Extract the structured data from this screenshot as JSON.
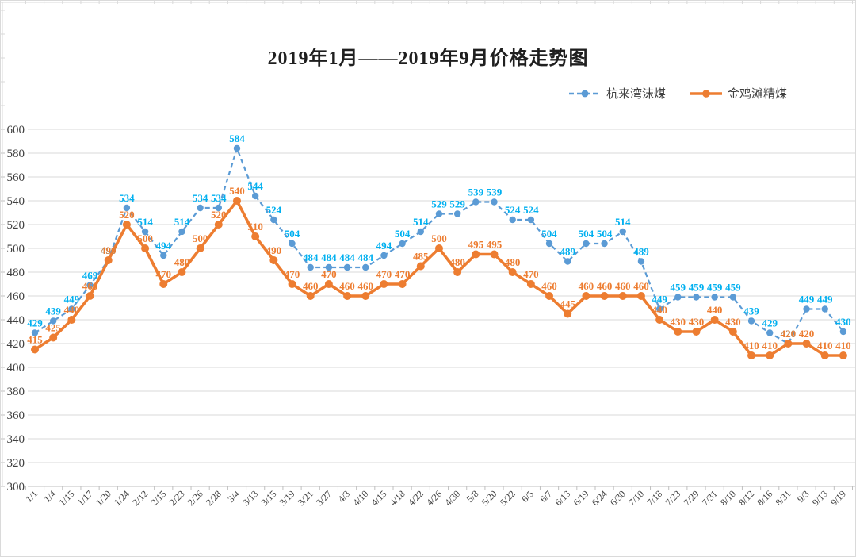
{
  "title": "2019年1月——2019年9月价格走势图",
  "legend": [
    {
      "label": "杭来湾沫煤",
      "color": "#5B9BD5",
      "style": "dashed"
    },
    {
      "label": "金鸡滩精煤",
      "color": "#ED7D31",
      "style": "solid"
    }
  ],
  "colors": {
    "blue_line": "#5B9BD5",
    "blue_label": "#00B0F0",
    "orange_line": "#ED7D31",
    "orange_label": "#ED7D31",
    "gridline": "#D9D9D9",
    "axis": "#BFBFBF",
    "tick_text": "#404040"
  },
  "chart_data": {
    "type": "line",
    "title": "2019年1月——2019年9月价格走势图",
    "categories": [
      "1/1",
      "1/4",
      "1/15",
      "1/17",
      "1/20",
      "1/24",
      "2/12",
      "2/15",
      "2/23",
      "2/26",
      "2/28",
      "3/4",
      "3/13",
      "3/15",
      "3/19",
      "3/21",
      "3/27",
      "4/3",
      "4/10",
      "4/15",
      "4/18",
      "4/22",
      "4/26",
      "4/30",
      "5/8",
      "5/20",
      "5/22",
      "6/5",
      "6/7",
      "6/13",
      "6/19",
      "6/24",
      "6/30",
      "7/10",
      "7/18",
      "7/23",
      "7/29",
      "7/31",
      "8/10",
      "8/12",
      "8/16",
      "8/31",
      "9/3",
      "9/13",
      "9/19"
    ],
    "series": [
      {
        "name": "杭来湾沫煤",
        "color": "#5B9BD5",
        "label_color": "#00B0F0",
        "line_style": "dashed",
        "marker": "circle",
        "values": [
          429,
          439,
          449,
          469,
          490,
          534,
          514,
          494,
          514,
          534,
          534,
          584,
          544,
          524,
          504,
          484,
          484,
          484,
          484,
          494,
          504,
          514,
          529,
          529,
          539,
          539,
          524,
          524,
          504,
          489,
          504,
          504,
          514,
          489,
          449,
          459,
          459,
          459,
          459,
          439,
          429,
          420,
          449,
          449,
          430
        ]
      },
      {
        "name": "金鸡滩精煤",
        "color": "#ED7D31",
        "label_color": "#ED7D31",
        "line_style": "solid",
        "marker": "circle",
        "values": [
          415,
          425,
          440,
          460,
          490,
          520,
          500,
          470,
          480,
          500,
          520,
          540,
          510,
          490,
          470,
          460,
          470,
          460,
          460,
          470,
          470,
          485,
          500,
          480,
          495,
          495,
          480,
          470,
          460,
          445,
          460,
          460,
          460,
          460,
          440,
          430,
          430,
          440,
          430,
          410,
          410,
          420,
          420,
          410,
          410
        ]
      }
    ],
    "ylim": [
      300,
      600
    ],
    "ytick_step": 20,
    "yticks": [
      300,
      320,
      340,
      360,
      380,
      400,
      420,
      440,
      460,
      480,
      500,
      520,
      540,
      560,
      580,
      600
    ],
    "grid": true,
    "data_labels": true,
    "legend_position": "top-right",
    "xlabel": "",
    "ylabel": ""
  }
}
